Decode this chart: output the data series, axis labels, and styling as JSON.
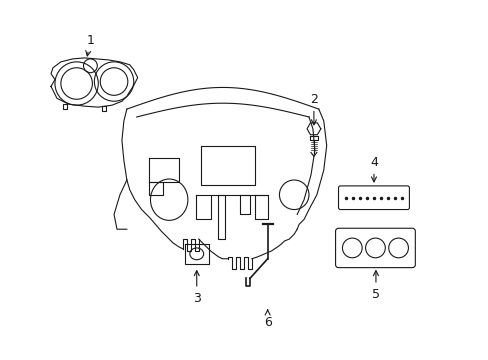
{
  "background_color": "#ffffff",
  "line_color": "#1a1a1a",
  "line_width": 0.8,
  "label_fontsize": 8,
  "fig_width": 4.89,
  "fig_height": 3.6,
  "dpi": 100
}
